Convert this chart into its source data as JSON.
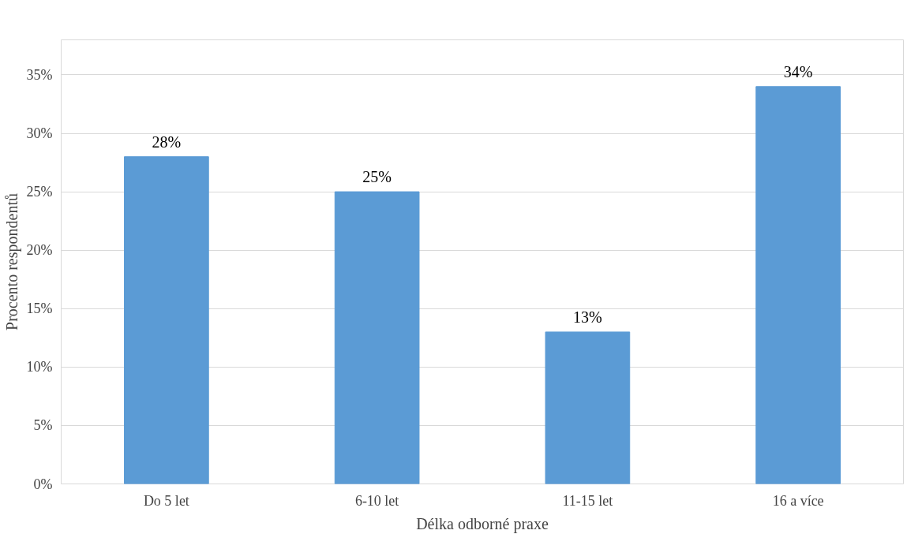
{
  "chart_data": {
    "type": "bar",
    "xlabel": "Délka odborné praxe",
    "ylabel": "Procento respondentů",
    "categories": [
      "Do 5 let",
      "6-10 let",
      "11-15 let",
      "16 a více"
    ],
    "values": [
      28,
      25,
      13,
      34
    ],
    "value_labels": [
      "28%",
      "25%",
      "13%",
      "34%"
    ],
    "color": "#5b9bd5",
    "ylim": [
      0,
      38
    ],
    "yticks": [
      {
        "value": 0,
        "label": "0%"
      },
      {
        "value": 5,
        "label": "5%"
      },
      {
        "value": 10,
        "label": "10%"
      },
      {
        "value": 15,
        "label": "15%"
      },
      {
        "value": 20,
        "label": "20%"
      },
      {
        "value": 25,
        "label": "25%"
      },
      {
        "value": 30,
        "label": "30%"
      },
      {
        "value": 35,
        "label": "35%"
      }
    ],
    "grid": "y"
  }
}
